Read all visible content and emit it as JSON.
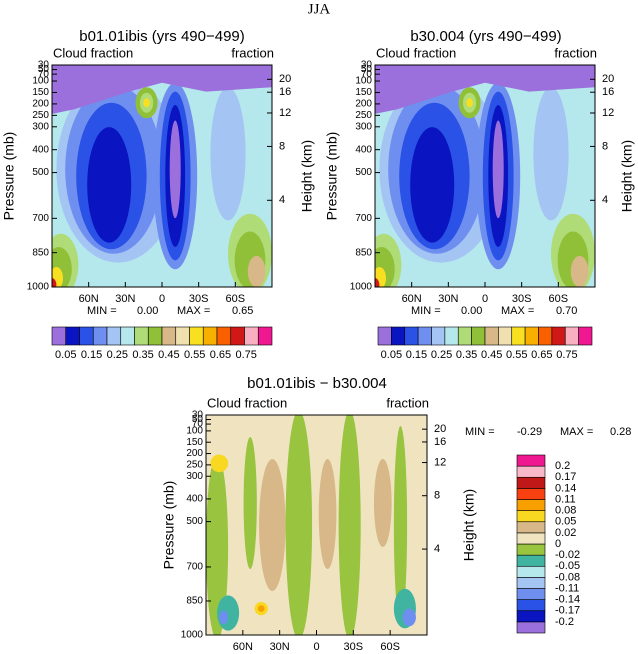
{
  "title": "JJA",
  "chart_data": [
    {
      "type": "contour",
      "title": "b01.01ibis (yrs 490−499)",
      "subtitle_left": "Cloud fraction",
      "subtitle_right": "fraction",
      "ylabel": "Pressure (mb)",
      "y2label": "Height (km)",
      "xlim": [
        90,
        -90
      ],
      "xticks": [
        {
          "value": 60,
          "label": "60N"
        },
        {
          "value": 30,
          "label": "30N"
        },
        0,
        {
          "value": -30,
          "label": "30S"
        },
        {
          "value": -60,
          "label": "60S"
        }
      ],
      "ylim": [
        1000,
        30
      ],
      "yticks": [
        30,
        50,
        70,
        100,
        150,
        200,
        250,
        300,
        400,
        500,
        700,
        850,
        1000
      ],
      "y2ticks": [
        20,
        16,
        12,
        8,
        4
      ],
      "min_label": "MIN =",
      "min": {
        "value": 0,
        "label": "0.00"
      },
      "max_label": "MAX =",
      "max": 0.65,
      "colorbar": {
        "orientation": "horizontal",
        "levels": [
          0.05,
          0.15,
          0.25,
          0.35,
          0.45,
          0.55,
          0.65,
          0.75
        ],
        "colors": [
          "#9b70dc",
          "#0a14c0",
          "#2a52e6",
          "#6e8ef0",
          "#a4c4f4",
          "#b4e8ec",
          "#b0dc78",
          "#90c038",
          "#d8b888",
          "#f0e0b0",
          "#f8e020",
          "#f8b000",
          "#f86000",
          "#d01818",
          "#f8b0c0",
          "#f01890"
        ]
      }
    },
    {
      "type": "contour",
      "title": "b30.004 (yrs 490−499)",
      "subtitle_left": "Cloud fraction",
      "subtitle_right": "fraction",
      "ylabel": "Pressure (mb)",
      "y2label": "Height (km)",
      "xlim": [
        90,
        -90
      ],
      "xticks": [
        {
          "value": 60,
          "label": "60N"
        },
        {
          "value": 30,
          "label": "30N"
        },
        0,
        {
          "value": -30,
          "label": "30S"
        },
        {
          "value": -60,
          "label": "60S"
        }
      ],
      "ylim": [
        1000,
        30
      ],
      "yticks": [
        30,
        50,
        70,
        100,
        150,
        200,
        250,
        300,
        400,
        500,
        700,
        850,
        1000
      ],
      "y2ticks": [
        20,
        16,
        12,
        8,
        4
      ],
      "min_label": "MIN =",
      "min": {
        "value": 0,
        "label": "0.00"
      },
      "max_label": "MAX =",
      "max": {
        "value": 0.7,
        "label": "0.70"
      },
      "colorbar": {
        "orientation": "horizontal",
        "levels": [
          0.05,
          0.15,
          0.25,
          0.35,
          0.45,
          0.55,
          0.65,
          0.75
        ],
        "colors": [
          "#9b70dc",
          "#0a14c0",
          "#2a52e6",
          "#6e8ef0",
          "#a4c4f4",
          "#b4e8ec",
          "#b0dc78",
          "#90c038",
          "#d8b888",
          "#f0e0b0",
          "#f8e020",
          "#f8b000",
          "#f86000",
          "#d01818",
          "#f8b0c0",
          "#f01890"
        ]
      }
    },
    {
      "type": "contour-diff",
      "title": "b01.01ibis − b30.004",
      "subtitle_left": "Cloud fraction",
      "subtitle_right": "fraction",
      "ylabel": "Pressure (mb)",
      "y2label": "Height (km)",
      "xlim": [
        90,
        -90
      ],
      "xticks": [
        {
          "value": 60,
          "label": "60N"
        },
        {
          "value": 30,
          "label": "30N"
        },
        0,
        {
          "value": -30,
          "label": "30S"
        },
        {
          "value": -60,
          "label": "60S"
        }
      ],
      "ylim": [
        1000,
        30
      ],
      "yticks": [
        30,
        50,
        70,
        100,
        150,
        200,
        250,
        300,
        400,
        500,
        700,
        850,
        1000
      ],
      "y2ticks": [
        20,
        16,
        12,
        8,
        4
      ],
      "min_label": "MIN =",
      "min": -0.29,
      "max_label": "MAX =",
      "max": 0.28,
      "colorbar": {
        "orientation": "vertical",
        "levels": [
          -0.2,
          -0.17,
          -0.14,
          -0.11,
          -0.08,
          -0.05,
          -0.02,
          0,
          0.02,
          0.05,
          0.08,
          0.11,
          0.14,
          0.17,
          0.2
        ],
        "colors": [
          "#9b70dc",
          "#0a14c0",
          "#2a52e6",
          "#6e8ef0",
          "#a4c4f4",
          "#b4e8ec",
          "#40b4a0",
          "#98c440",
          "#f0e4c0",
          "#d8b888",
          "#f8d820",
          "#f8a000",
          "#f84010",
          "#c01818",
          "#f8b8c8",
          "#f01890"
        ]
      }
    }
  ]
}
